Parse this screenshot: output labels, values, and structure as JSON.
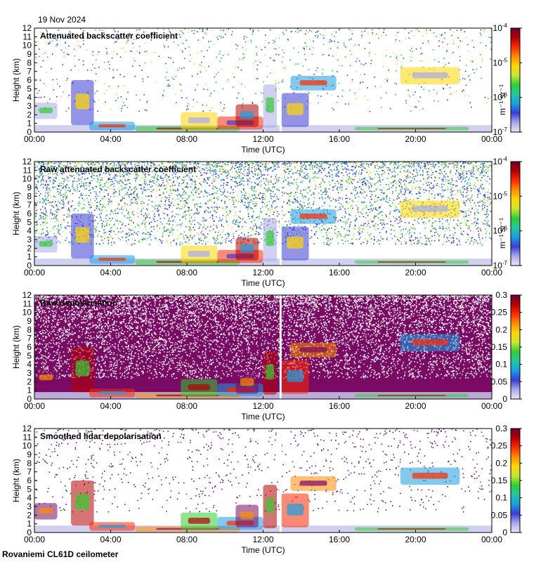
{
  "date": "19 Nov 2024",
  "footer": "Rovaniemi CL61D ceilometer",
  "chart_data": [
    {
      "type": "heatmap",
      "title": "Attenuated backscatter coefficient",
      "xlabel": "Time (UTC)",
      "ylabel": "Height (km)",
      "x_ticks": [
        "00:00",
        "04:00",
        "08:00",
        "12:00",
        "16:00",
        "20:00",
        "00:00"
      ],
      "y_ticks": [
        "0",
        "1",
        "2",
        "3",
        "4",
        "5",
        "6",
        "7",
        "8",
        "9",
        "10",
        "11",
        "12"
      ],
      "ylim": [
        0,
        12
      ],
      "colorbar": {
        "scale": "log",
        "unit": "m-1 sr-1",
        "ticks": [
          "10-7",
          "10-6",
          "10-5",
          "10-4"
        ]
      },
      "background": "white",
      "noise": "sparse",
      "data_gap_time": "12:55"
    },
    {
      "type": "heatmap",
      "title": "Raw attenuated backscatter coefficient",
      "xlabel": "Time (UTC)",
      "ylabel": "Height (km)",
      "x_ticks": [
        "00:00",
        "04:00",
        "08:00",
        "12:00",
        "16:00",
        "20:00",
        "00:00"
      ],
      "y_ticks": [
        "0",
        "1",
        "2",
        "3",
        "4",
        "5",
        "6",
        "7",
        "8",
        "9",
        "10",
        "11",
        "12"
      ],
      "ylim": [
        0,
        12
      ],
      "colorbar": {
        "scale": "log",
        "unit": "m-1 sr-1",
        "ticks": [
          "10-7",
          "10-6",
          "10-5",
          "10-4"
        ]
      },
      "background": "white",
      "noise": "dense",
      "data_gap_time": "12:55"
    },
    {
      "type": "heatmap",
      "title": "Raw depolarisation",
      "xlabel": "Time (UTC)",
      "ylabel": "Height (km)",
      "x_ticks": [
        "00:00",
        "04:00",
        "08:00",
        "12:00",
        "16:00",
        "20:00",
        "00:00"
      ],
      "y_ticks": [
        "0",
        "1",
        "2",
        "3",
        "4",
        "5",
        "6",
        "7",
        "8",
        "9",
        "10",
        "11",
        "12"
      ],
      "ylim": [
        0,
        12
      ],
      "colorbar": {
        "scale": "linear",
        "ticks": [
          "0",
          "0.05",
          "0.1",
          "0.15",
          "0.2",
          "0.25",
          "0.3"
        ]
      },
      "background": "purple",
      "noise": "very dense",
      "data_gap_time": "12:55"
    },
    {
      "type": "heatmap",
      "title": "Smoothed lidar depolarisation",
      "xlabel": "Time (UTC)",
      "ylabel": "Height (km)",
      "x_ticks": [
        "00:00",
        "04:00",
        "08:00",
        "12:00",
        "16:00",
        "20:00",
        "00:00"
      ],
      "y_ticks": [
        "0",
        "1",
        "2",
        "3",
        "4",
        "5",
        "6",
        "7",
        "8",
        "9",
        "10",
        "11",
        "12"
      ],
      "ylim": [
        0,
        12
      ],
      "colorbar": {
        "scale": "linear",
        "ticks": [
          "0",
          "0.05",
          "0.1",
          "0.15",
          "0.2",
          "0.25",
          "0.3"
        ]
      },
      "background": "white",
      "noise": "sparse",
      "data_gap_time": "12:55"
    }
  ]
}
